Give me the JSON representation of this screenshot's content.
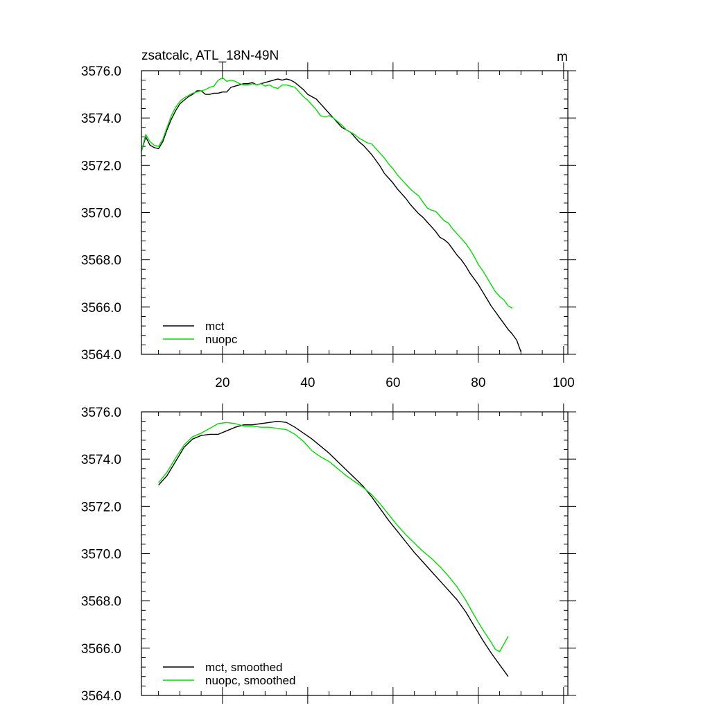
{
  "chart_data": [
    {
      "type": "line",
      "title": "zsatcalc, ATL_18N-49N",
      "units": "m",
      "xlim": [
        1,
        101
      ],
      "ylim": [
        3564.0,
        3576.0
      ],
      "xticks": [
        20,
        40,
        60,
        80,
        100
      ],
      "yticks": [
        "3564.0",
        "3566.0",
        "3568.0",
        "3570.0",
        "3572.0",
        "3574.0",
        "3576.0"
      ],
      "legend": "bottom-left",
      "series": [
        {
          "name": "mct",
          "color": "#000000",
          "points": [
            [
              1,
              3572.6
            ],
            [
              2,
              3573.2
            ],
            [
              3,
              3572.85
            ],
            [
              4,
              3572.75
            ],
            [
              5,
              3572.7
            ],
            [
              6,
              3573.0
            ],
            [
              7,
              3573.5
            ],
            [
              8,
              3573.95
            ],
            [
              9,
              3574.3
            ],
            [
              10,
              3574.6
            ],
            [
              11,
              3574.75
            ],
            [
              12,
              3574.9
            ],
            [
              13,
              3575.0
            ],
            [
              14,
              3575.15
            ],
            [
              15,
              3575.15
            ],
            [
              16,
              3575.0
            ],
            [
              17,
              3575.0
            ],
            [
              18,
              3575.05
            ],
            [
              19,
              3575.05
            ],
            [
              20,
              3575.1
            ],
            [
              21,
              3575.1
            ],
            [
              22,
              3575.3
            ],
            [
              23,
              3575.35
            ],
            [
              24,
              3575.4
            ],
            [
              25,
              3575.45
            ],
            [
              26,
              3575.45
            ],
            [
              27,
              3575.5
            ],
            [
              28,
              3575.4
            ],
            [
              29,
              3575.45
            ],
            [
              30,
              3575.5
            ],
            [
              31,
              3575.55
            ],
            [
              32,
              3575.6
            ],
            [
              33,
              3575.65
            ],
            [
              34,
              3575.6
            ],
            [
              35,
              3575.65
            ],
            [
              36,
              3575.6
            ],
            [
              37,
              3575.5
            ],
            [
              38,
              3575.35
            ],
            [
              39,
              3575.2
            ],
            [
              40,
              3575.0
            ],
            [
              41,
              3574.9
            ],
            [
              42,
              3574.8
            ],
            [
              43,
              3574.6
            ],
            [
              44,
              3574.4
            ],
            [
              45,
              3574.2
            ],
            [
              46,
              3574.0
            ],
            [
              47,
              3573.8
            ],
            [
              48,
              3573.6
            ],
            [
              49,
              3573.5
            ],
            [
              50,
              3573.4
            ],
            [
              51,
              3573.2
            ],
            [
              52,
              3573.0
            ],
            [
              53,
              3572.85
            ],
            [
              54,
              3572.65
            ],
            [
              55,
              3572.45
            ],
            [
              56,
              3572.2
            ],
            [
              57,
              3571.95
            ],
            [
              58,
              3571.65
            ],
            [
              59,
              3571.45
            ],
            [
              60,
              3571.25
            ],
            [
              61,
              3571.0
            ],
            [
              62,
              3570.8
            ],
            [
              63,
              3570.6
            ],
            [
              64,
              3570.35
            ],
            [
              65,
              3570.15
            ],
            [
              66,
              3569.95
            ],
            [
              67,
              3569.8
            ],
            [
              68,
              3569.6
            ],
            [
              69,
              3569.4
            ],
            [
              70,
              3569.2
            ],
            [
              71,
              3568.95
            ],
            [
              72,
              3568.85
            ],
            [
              73,
              3568.7
            ],
            [
              74,
              3568.45
            ],
            [
              75,
              3568.2
            ],
            [
              76,
              3568.0
            ],
            [
              77,
              3567.75
            ],
            [
              78,
              3567.45
            ],
            [
              79,
              3567.2
            ],
            [
              80,
              3566.95
            ],
            [
              81,
              3566.65
            ],
            [
              82,
              3566.35
            ],
            [
              83,
              3566.05
            ],
            [
              84,
              3565.8
            ],
            [
              85,
              3565.55
            ],
            [
              86,
              3565.3
            ],
            [
              87,
              3565.05
            ],
            [
              88,
              3564.85
            ],
            [
              89,
              3564.6
            ],
            [
              90,
              3564.1
            ]
          ]
        },
        {
          "name": "nuopc",
          "color": "#00dd00",
          "points": [
            [
              1,
              3572.6
            ],
            [
              2,
              3573.3
            ],
            [
              3,
              3573.0
            ],
            [
              4,
              3572.85
            ],
            [
              5,
              3572.8
            ],
            [
              6,
              3573.1
            ],
            [
              7,
              3573.6
            ],
            [
              8,
              3574.1
            ],
            [
              9,
              3574.45
            ],
            [
              10,
              3574.7
            ],
            [
              11,
              3574.85
            ],
            [
              12,
              3574.95
            ],
            [
              13,
              3575.05
            ],
            [
              14,
              3575.1
            ],
            [
              15,
              3575.15
            ],
            [
              16,
              3575.2
            ],
            [
              17,
              3575.3
            ],
            [
              18,
              3575.35
            ],
            [
              19,
              3575.6
            ],
            [
              20,
              3575.7
            ],
            [
              21,
              3575.55
            ],
            [
              22,
              3575.6
            ],
            [
              23,
              3575.55
            ],
            [
              24,
              3575.45
            ],
            [
              25,
              3575.4
            ],
            [
              26,
              3575.4
            ],
            [
              27,
              3575.45
            ],
            [
              28,
              3575.4
            ],
            [
              29,
              3575.45
            ],
            [
              30,
              3575.35
            ],
            [
              31,
              3575.4
            ],
            [
              32,
              3575.3
            ],
            [
              33,
              3575.25
            ],
            [
              34,
              3575.4
            ],
            [
              35,
              3575.4
            ],
            [
              36,
              3575.35
            ],
            [
              37,
              3575.3
            ],
            [
              38,
              3575.1
            ],
            [
              39,
              3574.9
            ],
            [
              40,
              3574.75
            ],
            [
              41,
              3574.55
            ],
            [
              42,
              3574.35
            ],
            [
              43,
              3574.1
            ],
            [
              44,
              3574.05
            ],
            [
              45,
              3574.1
            ],
            [
              46,
              3574.0
            ],
            [
              47,
              3573.85
            ],
            [
              48,
              3573.7
            ],
            [
              49,
              3573.5
            ],
            [
              50,
              3573.4
            ],
            [
              51,
              3573.3
            ],
            [
              52,
              3573.15
            ],
            [
              53,
              3573.05
            ],
            [
              54,
              3572.95
            ],
            [
              55,
              3572.9
            ],
            [
              56,
              3572.7
            ],
            [
              57,
              3572.5
            ],
            [
              58,
              3572.3
            ],
            [
              59,
              3572.05
            ],
            [
              60,
              3571.85
            ],
            [
              61,
              3571.6
            ],
            [
              62,
              3571.4
            ],
            [
              63,
              3571.2
            ],
            [
              64,
              3571.0
            ],
            [
              65,
              3570.85
            ],
            [
              66,
              3570.7
            ],
            [
              67,
              3570.45
            ],
            [
              68,
              3570.2
            ],
            [
              69,
              3570.1
            ],
            [
              70,
              3570.05
            ],
            [
              71,
              3569.85
            ],
            [
              72,
              3569.65
            ],
            [
              73,
              3569.55
            ],
            [
              74,
              3569.3
            ],
            [
              75,
              3569.1
            ],
            [
              76,
              3568.9
            ],
            [
              77,
              3568.7
            ],
            [
              78,
              3568.45
            ],
            [
              79,
              3568.15
            ],
            [
              80,
              3567.8
            ],
            [
              81,
              3567.55
            ],
            [
              82,
              3567.25
            ],
            [
              83,
              3566.95
            ],
            [
              84,
              3566.65
            ],
            [
              85,
              3566.45
            ],
            [
              86,
              3566.3
            ],
            [
              87,
              3566.05
            ],
            [
              88,
              3565.95
            ]
          ]
        }
      ]
    },
    {
      "type": "line",
      "xlim": [
        1,
        101
      ],
      "ylim": [
        3564.0,
        3576.0
      ],
      "yticks": [
        "3564.0",
        "3566.0",
        "3568.0",
        "3570.0",
        "3572.0",
        "3574.0",
        "3576.0"
      ],
      "legend": "bottom-left",
      "series": [
        {
          "name": "mct, smoothed",
          "color": "#000000",
          "points": [
            [
              5,
              3572.9
            ],
            [
              7,
              3573.3
            ],
            [
              9,
              3573.9
            ],
            [
              11,
              3574.5
            ],
            [
              13,
              3574.85
            ],
            [
              15,
              3575.0
            ],
            [
              17,
              3575.05
            ],
            [
              19,
              3575.05
            ],
            [
              21,
              3575.2
            ],
            [
              23,
              3575.35
            ],
            [
              25,
              3575.45
            ],
            [
              27,
              3575.45
            ],
            [
              29,
              3575.5
            ],
            [
              31,
              3575.55
            ],
            [
              33,
              3575.6
            ],
            [
              35,
              3575.55
            ],
            [
              37,
              3575.35
            ],
            [
              39,
              3575.1
            ],
            [
              41,
              3574.85
            ],
            [
              43,
              3574.55
            ],
            [
              45,
              3574.25
            ],
            [
              47,
              3573.9
            ],
            [
              49,
              3573.55
            ],
            [
              51,
              3573.2
            ],
            [
              53,
              3572.85
            ],
            [
              55,
              3572.4
            ],
            [
              57,
              3571.9
            ],
            [
              59,
              3571.4
            ],
            [
              61,
              3570.95
            ],
            [
              63,
              3570.5
            ],
            [
              65,
              3570.05
            ],
            [
              67,
              3569.65
            ],
            [
              69,
              3569.25
            ],
            [
              71,
              3568.85
            ],
            [
              73,
              3568.45
            ],
            [
              75,
              3568.05
            ],
            [
              77,
              3567.55
            ],
            [
              79,
              3566.95
            ],
            [
              81,
              3566.35
            ],
            [
              83,
              3565.8
            ],
            [
              85,
              3565.3
            ],
            [
              87,
              3564.8
            ]
          ]
        },
        {
          "name": "nuopc, smoothed",
          "color": "#00dd00",
          "points": [
            [
              5,
              3573.0
            ],
            [
              7,
              3573.45
            ],
            [
              9,
              3574.05
            ],
            [
              11,
              3574.6
            ],
            [
              13,
              3574.95
            ],
            [
              15,
              3575.1
            ],
            [
              17,
              3575.3
            ],
            [
              19,
              3575.5
            ],
            [
              21,
              3575.55
            ],
            [
              23,
              3575.5
            ],
            [
              25,
              3575.4
            ],
            [
              27,
              3575.4
            ],
            [
              29,
              3575.35
            ],
            [
              31,
              3575.35
            ],
            [
              33,
              3575.3
            ],
            [
              35,
              3575.25
            ],
            [
              37,
              3575.05
            ],
            [
              39,
              3574.75
            ],
            [
              41,
              3574.35
            ],
            [
              43,
              3574.1
            ],
            [
              45,
              3573.9
            ],
            [
              47,
              3573.6
            ],
            [
              49,
              3573.3
            ],
            [
              51,
              3573.05
            ],
            [
              53,
              3572.8
            ],
            [
              55,
              3572.5
            ],
            [
              57,
              3572.1
            ],
            [
              59,
              3571.65
            ],
            [
              61,
              3571.2
            ],
            [
              63,
              3570.8
            ],
            [
              65,
              3570.45
            ],
            [
              67,
              3570.1
            ],
            [
              69,
              3569.8
            ],
            [
              71,
              3569.45
            ],
            [
              73,
              3569.05
            ],
            [
              75,
              3568.6
            ],
            [
              77,
              3568.05
            ],
            [
              79,
              3567.4
            ],
            [
              81,
              3566.8
            ],
            [
              83,
              3566.25
            ],
            [
              84,
              3565.95
            ],
            [
              85,
              3565.85
            ],
            [
              87,
              3566.5
            ]
          ]
        }
      ]
    }
  ]
}
